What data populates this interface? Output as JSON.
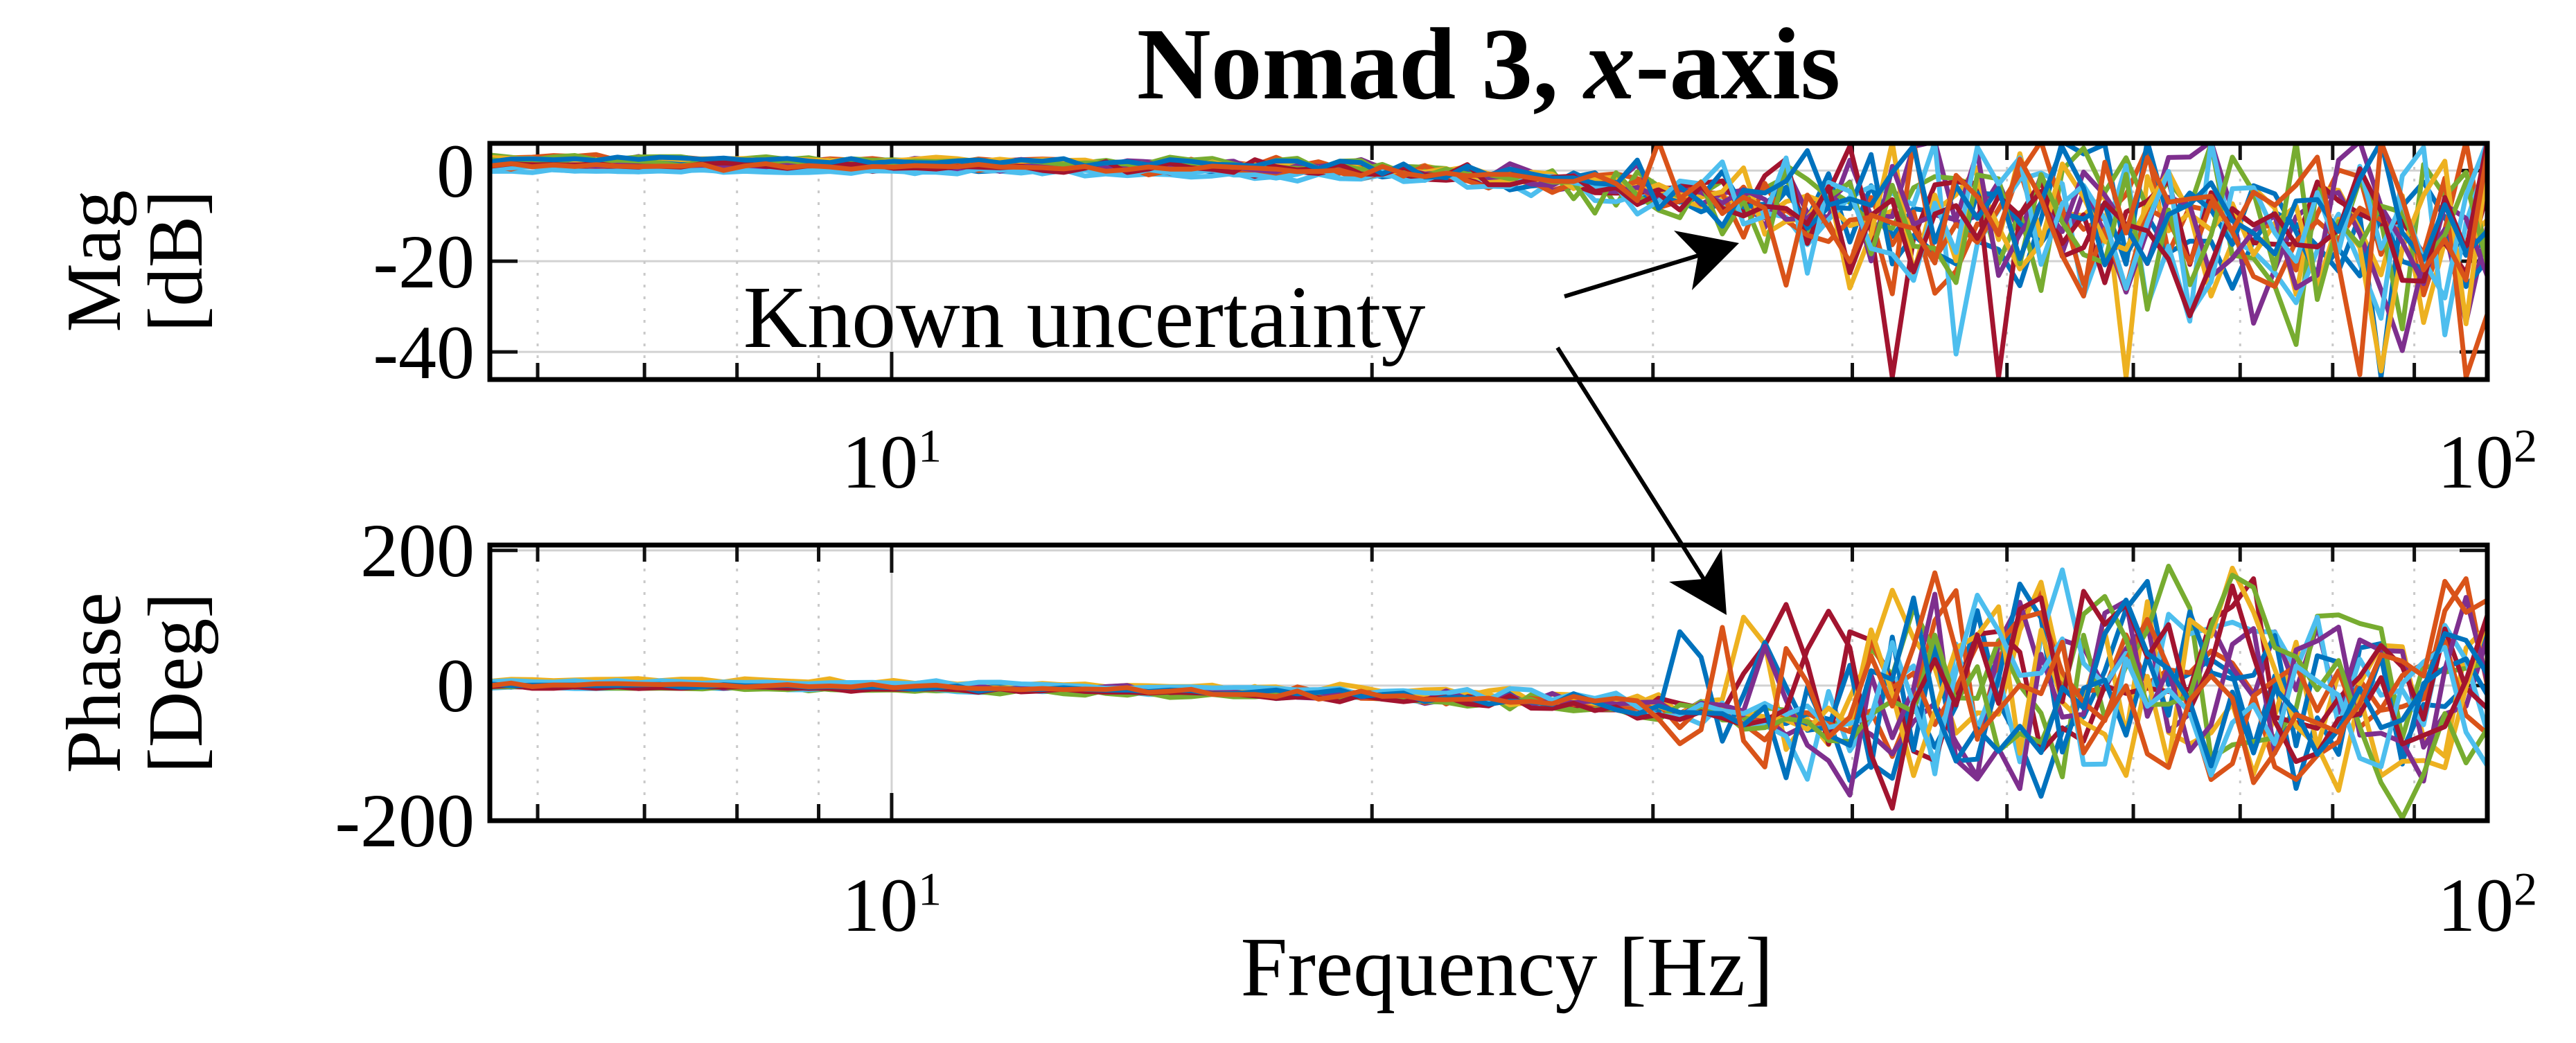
{
  "title": {
    "prefix": "Nomad 3, ",
    "emph": "x",
    "suffix": "-axis"
  },
  "annotation": {
    "label": "Known uncertainty"
  },
  "axes": {
    "mag": {
      "ylabel": [
        "Mag",
        "[dB]"
      ],
      "yticks": [
        "0",
        "-20",
        "-40"
      ]
    },
    "phase": {
      "ylabel": [
        "Phase",
        "[Deg]"
      ],
      "yticks": [
        "200",
        "0",
        "-200"
      ]
    },
    "x": {
      "label": "Frequency [Hz]",
      "ticks": [
        {
          "base": "10",
          "exp": "1"
        },
        {
          "base": "10",
          "exp": "2"
        }
      ]
    }
  },
  "chart_data": [
    {
      "type": "line",
      "subplot": "magnitude",
      "title": "Nomad 3, x-axis",
      "xlabel": "Frequency [Hz]",
      "ylabel": "Mag [dB]",
      "xscale": "log",
      "xlim": [
        5.6,
        100
      ],
      "ylim": [
        -46.1,
        6.0
      ],
      "xticks": [
        10,
        100
      ],
      "xticks_minor": [
        6,
        7,
        8,
        9,
        20,
        30,
        40,
        50,
        60,
        70,
        80,
        90
      ],
      "yticks": [
        0,
        -20,
        -40
      ],
      "grid": true,
      "legend": "none",
      "n_lines": 16,
      "n_points_per_line": 95,
      "series_colors": [
        "#0072BD",
        "#D95319",
        "#EDB120",
        "#7E2F8E",
        "#77AC30",
        "#4DBEEE",
        "#A2142F"
      ],
      "trend_anchors": [
        [
          5.6,
          1.6
        ],
        [
          8,
          1.4
        ],
        [
          10,
          1.2
        ],
        [
          14,
          0.9
        ],
        [
          18,
          0.4
        ],
        [
          22,
          -0.6
        ],
        [
          26,
          -2.2
        ],
        [
          30,
          -4.5
        ],
        [
          35,
          -7
        ],
        [
          40,
          -9
        ],
        [
          50,
          -10.5
        ],
        [
          60,
          -11
        ],
        [
          70,
          -12
        ],
        [
          85,
          -12.5
        ],
        [
          100,
          -13.5
        ]
      ],
      "noise_sd_anchors": [
        [
          5.6,
          0.55
        ],
        [
          12,
          0.8
        ],
        [
          18,
          1.3
        ],
        [
          24,
          2.2
        ],
        [
          30,
          3.6
        ],
        [
          38,
          5.2
        ],
        [
          50,
          6.2
        ],
        [
          70,
          6.8
        ],
        [
          100,
          7.2
        ]
      ],
      "deep_spike": {
        "freq": 83,
        "value_db": -45
      },
      "behavior": "Many overlaid FRF measurements: flat near 0 dB below ~20 Hz, increasingly noisy scatter between 0 and -30 dB above ~30 Hz, occasional spikes down to -45 dB",
      "annotation_target": {
        "freq": 34,
        "value": -16,
        "label": "Known uncertainty"
      }
    },
    {
      "type": "line",
      "subplot": "phase",
      "xlabel": "Frequency [Hz]",
      "ylabel": "Phase [Deg]",
      "xscale": "log",
      "xlim": [
        5.6,
        100
      ],
      "ylim": [
        -200,
        208
      ],
      "xticks": [
        10,
        100
      ],
      "xticks_minor": [
        6,
        7,
        8,
        9,
        20,
        30,
        40,
        50,
        60,
        70,
        80,
        90
      ],
      "yticks": [
        200,
        0,
        -200
      ],
      "grid": true,
      "legend": "none",
      "n_lines": 16,
      "n_points_per_line": 95,
      "series_colors": [
        "#0072BD",
        "#D95319",
        "#EDB120",
        "#7E2F8E",
        "#77AC30",
        "#4DBEEE",
        "#A2142F"
      ],
      "trend_anchors": [
        [
          5.6,
          1
        ],
        [
          8,
          0
        ],
        [
          10,
          -2
        ],
        [
          13,
          -5
        ],
        [
          16,
          -9
        ],
        [
          20,
          -14
        ],
        [
          24,
          -20
        ],
        [
          28,
          -28
        ],
        [
          32,
          -38
        ],
        [
          36,
          -48
        ],
        [
          40,
          -58
        ],
        [
          45,
          -68
        ],
        [
          50,
          -78
        ],
        [
          60,
          -95
        ],
        [
          70,
          -110
        ],
        [
          85,
          -130
        ],
        [
          100,
          -145
        ]
      ],
      "noise_sd_anchors": [
        [
          5.6,
          2.5
        ],
        [
          10,
          3
        ],
        [
          15,
          4.5
        ],
        [
          20,
          7
        ],
        [
          25,
          10
        ],
        [
          30,
          14
        ],
        [
          35,
          18
        ],
        [
          40,
          22
        ],
        [
          50,
          26
        ],
        [
          100,
          30
        ]
      ],
      "chaos_onset_hz": [
        30,
        42
      ],
      "behavior": "Phase near 0 deg at low frequency, slow roll-off to about -60 deg by ~35 Hz, then chaotic wrapped oscillations spanning roughly -180 to +180 deg up to 100 Hz",
      "annotation_target": {
        "freq": 34,
        "value": 105,
        "label": "Known uncertainty"
      }
    }
  ]
}
